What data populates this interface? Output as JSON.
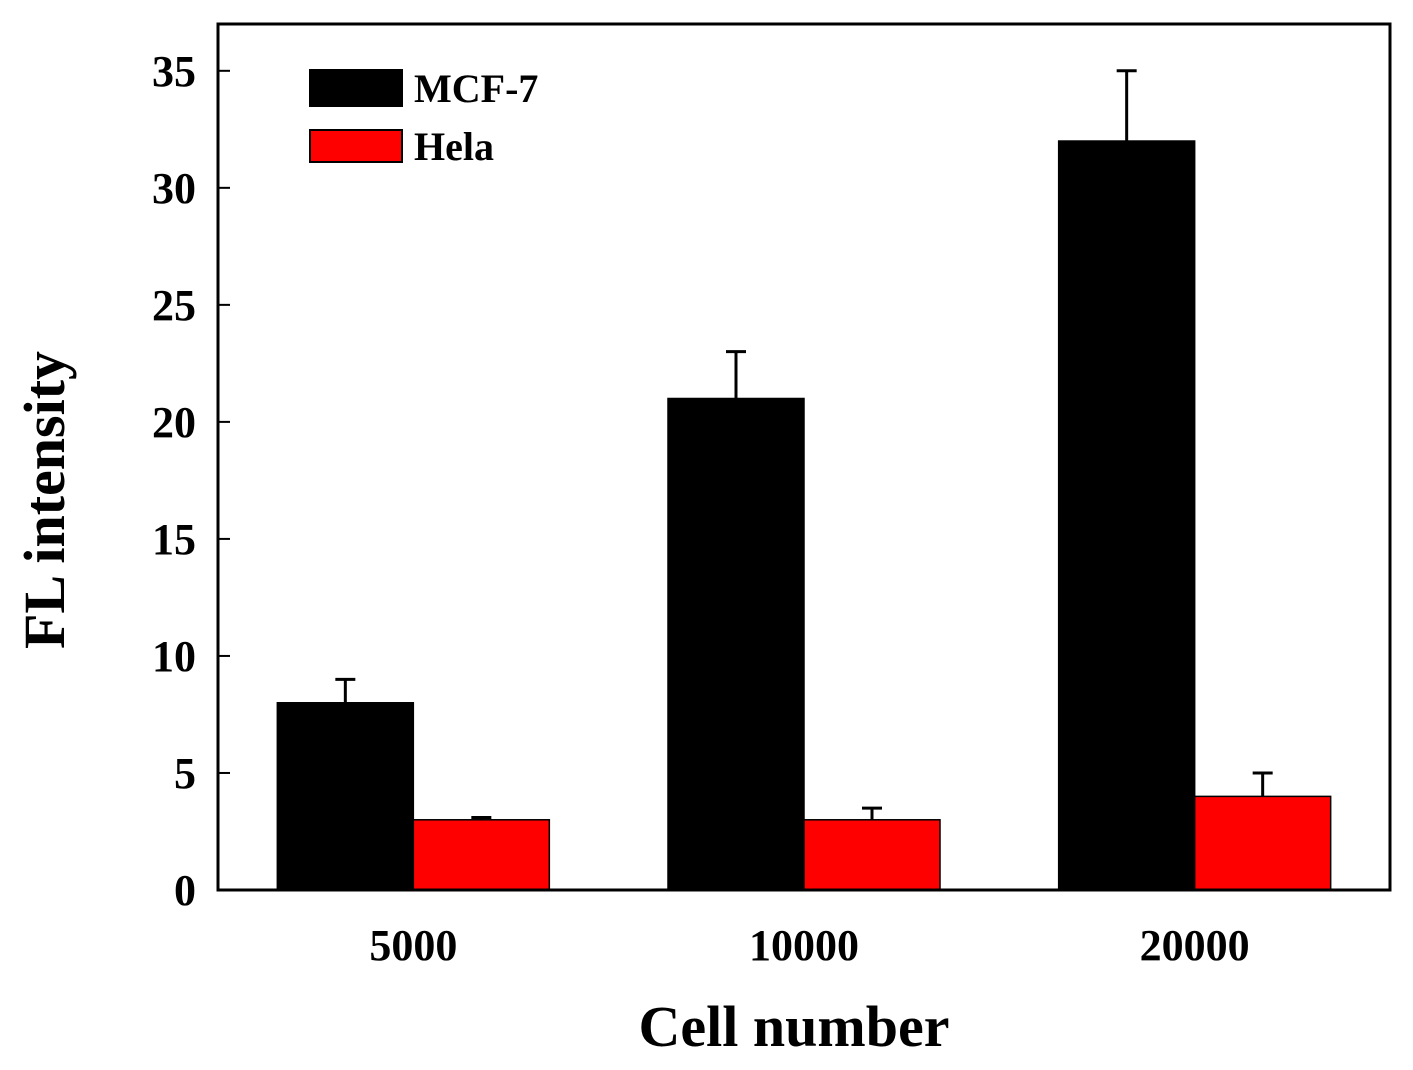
{
  "chart_data": {
    "type": "bar",
    "title": "",
    "xlabel": "Cell number",
    "ylabel": "FL intensity",
    "categories": [
      "5000",
      "10000",
      "20000"
    ],
    "ylim": [
      0,
      37
    ],
    "yticks": [
      0,
      5,
      10,
      15,
      20,
      25,
      30,
      35
    ],
    "ytick_labels": [
      "0",
      "5",
      "10",
      "15",
      "20",
      "25",
      "30",
      "35"
    ],
    "grid": false,
    "legend_position": "top-left",
    "series": [
      {
        "name": "MCF-7",
        "color": "#000000",
        "values": [
          8,
          21,
          32
        ],
        "errors": [
          1,
          2,
          3
        ]
      },
      {
        "name": "Hela",
        "color": "#ff0000",
        "values": [
          3,
          3,
          4
        ],
        "errors": [
          0.1,
          0.5,
          1
        ]
      }
    ]
  }
}
